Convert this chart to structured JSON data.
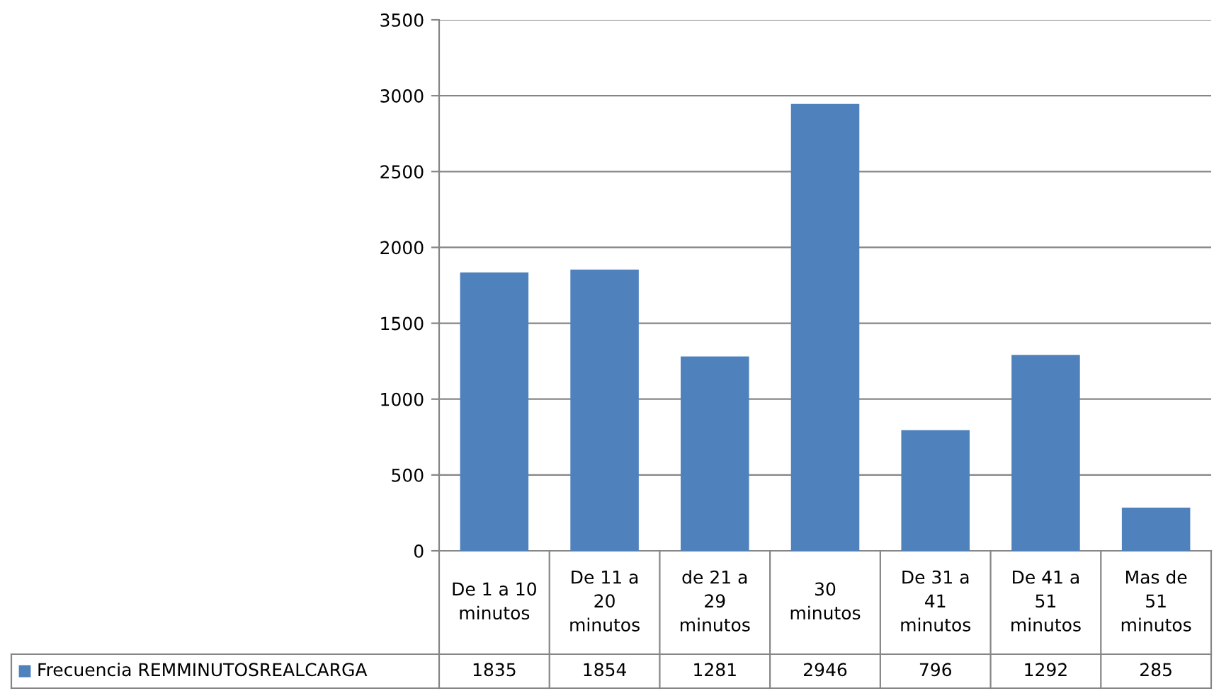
{
  "chart_data": {
    "type": "bar",
    "categories": [
      "De 1 a 10\nminutos",
      "De 11 a\n20\nminutos",
      "de 21 a\n29\nminutos",
      "30\nminutos",
      "De 31 a\n41\nminutos",
      "De 41 a\n51\nminutos",
      "Mas de\n51\nminutos"
    ],
    "series": [
      {
        "name": "Frecuencia REMMINUTOSREALCARGA",
        "color": "#4f81bd",
        "values": [
          1835,
          1854,
          1281,
          2946,
          796,
          1292,
          285
        ]
      }
    ],
    "ylim": [
      0,
      3500
    ],
    "yticks": [
      0,
      500,
      1000,
      1500,
      2000,
      2500,
      3000,
      3500
    ],
    "grid": "y",
    "legend": "bottom left",
    "data_labels": true
  }
}
